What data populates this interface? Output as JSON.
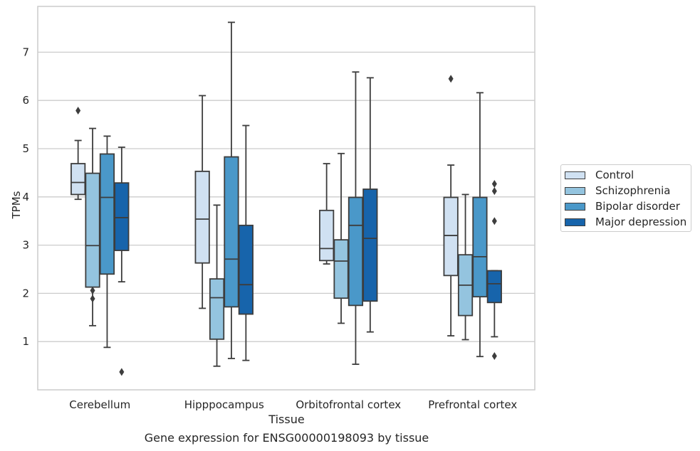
{
  "chart_data": {
    "type": "box",
    "xlabel": "Tissue",
    "ylabel": "TPMs",
    "caption": "Gene expression for ENSG00000198093 by tissue",
    "ylim": [
      0.0,
      7.95
    ],
    "yticks": [
      1,
      2,
      3,
      4,
      5,
      6,
      7
    ],
    "grid": "horizontal",
    "legend_position": "right",
    "categories": [
      "Cerebellum",
      "Hipppocampus",
      "Orbitofrontal cortex",
      "Prefrontal cortex"
    ],
    "series": [
      {
        "name": "Control",
        "color": "#d0e1f2",
        "boxes": [
          {
            "min": 3.95,
            "q1": 4.05,
            "median": 4.3,
            "q3": 4.69,
            "max": 5.17,
            "outliers": [
              5.79
            ]
          },
          {
            "min": 1.69,
            "q1": 2.63,
            "median": 3.54,
            "q3": 4.53,
            "max": 6.1,
            "outliers": []
          },
          {
            "min": 2.61,
            "q1": 2.68,
            "median": 2.93,
            "q3": 3.72,
            "max": 4.69,
            "outliers": []
          },
          {
            "min": 1.12,
            "q1": 2.37,
            "median": 3.2,
            "q3": 3.99,
            "max": 4.66,
            "outliers": [
              6.45
            ]
          }
        ]
      },
      {
        "name": "Schizophrenia",
        "color": "#94c4df",
        "boxes": [
          {
            "min": 1.33,
            "q1": 2.13,
            "median": 2.99,
            "q3": 4.49,
            "max": 5.42,
            "outliers": [
              2.06,
              1.89
            ]
          },
          {
            "min": 0.49,
            "q1": 1.05,
            "median": 1.91,
            "q3": 2.3,
            "max": 3.83,
            "outliers": []
          },
          {
            "min": 1.38,
            "q1": 1.9,
            "median": 2.67,
            "q3": 3.11,
            "max": 4.9,
            "outliers": []
          },
          {
            "min": 1.04,
            "q1": 1.54,
            "median": 2.17,
            "q3": 2.8,
            "max": 4.05,
            "outliers": []
          }
        ]
      },
      {
        "name": "Bipolar disorder",
        "color": "#4a98c9",
        "boxes": [
          {
            "min": 0.88,
            "q1": 2.4,
            "median": 3.99,
            "q3": 4.89,
            "max": 5.26,
            "outliers": []
          },
          {
            "min": 0.65,
            "q1": 1.72,
            "median": 2.71,
            "q3": 4.83,
            "max": 7.62,
            "outliers": []
          },
          {
            "min": 0.53,
            "q1": 1.75,
            "median": 3.41,
            "q3": 3.99,
            "max": 6.59,
            "outliers": []
          },
          {
            "min": 0.69,
            "q1": 1.93,
            "median": 2.76,
            "q3": 3.99,
            "max": 6.16,
            "outliers": []
          }
        ]
      },
      {
        "name": "Major depression",
        "color": "#1764ab",
        "boxes": [
          {
            "min": 2.24,
            "q1": 2.89,
            "median": 3.57,
            "q3": 4.29,
            "max": 5.03,
            "outliers": [
              0.37
            ]
          },
          {
            "min": 0.61,
            "q1": 1.57,
            "median": 2.18,
            "q3": 3.41,
            "max": 5.48,
            "outliers": []
          },
          {
            "min": 1.2,
            "q1": 1.84,
            "median": 3.14,
            "q3": 4.16,
            "max": 6.47,
            "outliers": []
          },
          {
            "min": 1.1,
            "q1": 1.81,
            "median": 2.2,
            "q3": 2.47,
            "max": 2.47,
            "outliers": [
              4.27,
              4.12,
              3.5,
              0.7
            ]
          }
        ]
      }
    ]
  }
}
